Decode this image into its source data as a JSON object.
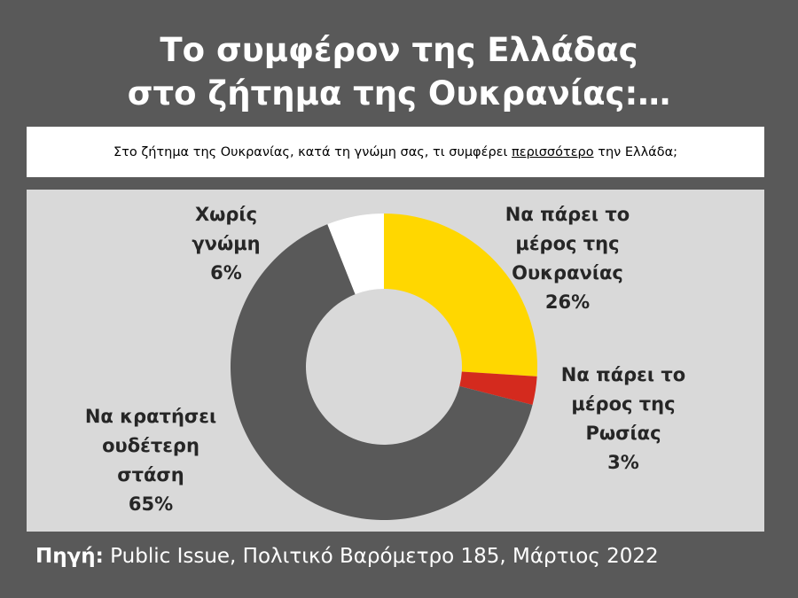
{
  "title": {
    "line1": "Το συμφέρον της Ελλάδας",
    "line2": "στο ζήτημα της Ουκρανίας:…"
  },
  "question": {
    "before": "Στο ζήτημα της Ουκρανίας, κατά τη γνώμη σας, τι συμφέρει ",
    "underlined": "περισσότερο",
    "after": " την Ελλάδα;"
  },
  "chart_data": {
    "type": "pie",
    "variant": "donut",
    "title": "Το συμφέρον της Ελλάδας στο ζήτημα της Ουκρανίας:…",
    "categories": [
      "Να πάρει το μέρος της Ουκρανίας",
      "Να πάρει το μέρος της Ρωσίας",
      "Να κρατήσει ουδέτερη στάση",
      "Χωρίς γνώμη"
    ],
    "values": [
      26,
      3,
      65,
      6
    ],
    "unit": "%",
    "legend": "none",
    "start": "top",
    "direction": "clockwise",
    "colors": [
      "#ffd700",
      "#d42a1e",
      "#595959",
      "#ffffff"
    ],
    "labels": [
      {
        "lines": [
          "Να πάρει το",
          "μέρος της",
          "Ουκρανίας"
        ],
        "value": "26%"
      },
      {
        "lines": [
          "Να πάρει το",
          "μέρος της",
          "Ρωσίας"
        ],
        "value": "3%"
      },
      {
        "lines": [
          "Να κρατήσει",
          "ουδέτερη",
          "στάση"
        ],
        "value": "65%"
      },
      {
        "lines": [
          "Χωρίς",
          "γνώμη"
        ],
        "value": "6%"
      }
    ]
  },
  "source": {
    "label": "Πηγή:",
    "text": " Public Issue, Πολιτικό Βαρόμετρο 185, Μάρτιος 2022"
  }
}
